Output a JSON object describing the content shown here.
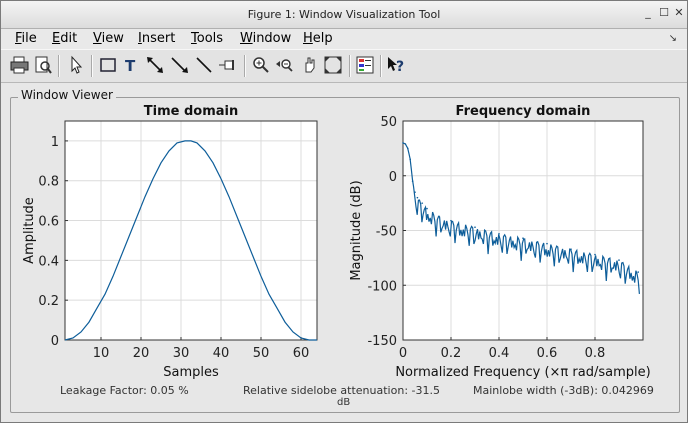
{
  "window": {
    "title": "Figure 1: Window Visualization Tool"
  },
  "menu": [
    {
      "pre": "",
      "u": "F",
      "post": "ile"
    },
    {
      "pre": "",
      "u": "E",
      "post": "dit"
    },
    {
      "pre": "",
      "u": "V",
      "post": "iew"
    },
    {
      "pre": "",
      "u": "I",
      "post": "nsert"
    },
    {
      "pre": "",
      "u": "T",
      "post": "ools"
    },
    {
      "pre": "",
      "u": "W",
      "post": "indow"
    },
    {
      "pre": "",
      "u": "H",
      "post": "elp"
    }
  ],
  "toolbar": {
    "icons": [
      "print-icon",
      "print-preview-icon",
      "pointer-icon",
      "rectangle-icon",
      "text-icon",
      "double-arrow-icon",
      "arrow-icon",
      "line-icon",
      "pin-icon",
      "zoom-in-icon",
      "zoom-out-icon",
      "pan-icon",
      "zoom-fit-icon",
      "legend-icon",
      "help-pointer-icon"
    ]
  },
  "panel": {
    "title": "Window Viewer"
  },
  "status": {
    "leakage": "Leakage Factor: 0.05 %",
    "sidelobe": "Relative sidelobe attenuation: -31.5",
    "sidelobe_unit": "dB",
    "mainlobe": "Mainlobe width (-3dB): 0.042969"
  },
  "colors": {
    "line": "#0e5e9a",
    "accent": "#0072bd"
  },
  "chart_data": [
    {
      "type": "line",
      "title": "Time domain",
      "xlabel": "Samples",
      "ylabel": "Amplitude",
      "xlim": [
        1,
        64
      ],
      "ylim": [
        0,
        1.1
      ],
      "xticks": [
        10,
        20,
        30,
        40,
        50,
        60
      ],
      "xtick_labels": [
        "10",
        "20",
        "30",
        "40",
        "50",
        "60"
      ],
      "yticks": [
        0,
        0.2,
        0.4,
        0.6,
        0.8,
        1
      ],
      "ytick_labels": [
        "0",
        "0.2",
        "0.4",
        "0.6",
        "0.8",
        "1"
      ],
      "grid": true,
      "series": [
        {
          "x": [
            1,
            3,
            5,
            7,
            9,
            11,
            13,
            15,
            17,
            19,
            21,
            23,
            25,
            27,
            29,
            31,
            32.5,
            34,
            36,
            38,
            40,
            42,
            44,
            46,
            48,
            50,
            52,
            54,
            56,
            58,
            60,
            62,
            64
          ],
          "y": [
            0.0,
            0.01,
            0.04,
            0.09,
            0.16,
            0.23,
            0.32,
            0.42,
            0.52,
            0.62,
            0.72,
            0.81,
            0.89,
            0.95,
            0.99,
            1.0,
            1.0,
            0.99,
            0.95,
            0.89,
            0.81,
            0.72,
            0.62,
            0.52,
            0.42,
            0.32,
            0.23,
            0.16,
            0.09,
            0.04,
            0.01,
            0.0,
            0.0
          ]
        }
      ]
    },
    {
      "type": "line",
      "title": "Frequency domain",
      "xlabel": "Normalized Frequency  (×π rad/sample)",
      "ylabel": "Magnitude (dB)",
      "xlim": [
        0,
        1
      ],
      "ylim": [
        -150,
        50
      ],
      "xticks": [
        0,
        0.2,
        0.4,
        0.6,
        0.8
      ],
      "xtick_labels": [
        "0",
        "0.2",
        "0.4",
        "0.6",
        "0.8"
      ],
      "yticks": [
        50,
        0,
        -50,
        -100,
        -150
      ],
      "ytick_labels": [
        "50",
        "0",
        "-50",
        "-100",
        "-150"
      ],
      "grid": true,
      "series": [
        {
          "x": [
            0,
            0.01,
            0.02,
            0.03,
            0.04,
            0.05,
            0.06,
            0.08,
            0.1,
            0.15,
            0.2,
            0.3,
            0.4,
            0.5,
            0.6,
            0.7,
            0.8,
            0.9,
            0.98
          ],
          "y": [
            30,
            29,
            25,
            15,
            -5,
            -15,
            -20,
            -25,
            -30,
            -37,
            -41,
            -47,
            -53,
            -57,
            -62,
            -67,
            -72,
            -77,
            -88
          ]
        }
      ]
    }
  ]
}
